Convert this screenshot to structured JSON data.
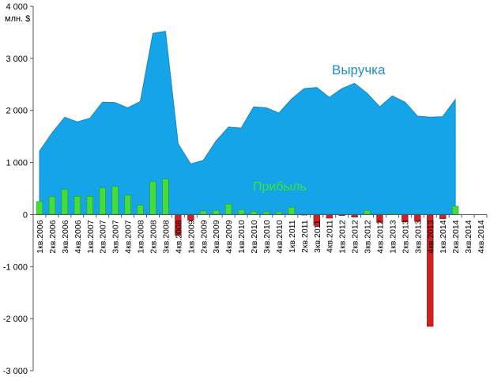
{
  "chart_data": {
    "type": "area",
    "unit_label": "млн. $",
    "series_labels": {
      "revenue": "Выручка",
      "profit": "Прибыль"
    },
    "ylim": [
      -3000,
      4000
    ],
    "yticks": [
      4000,
      3000,
      2000,
      1000,
      0,
      -1000,
      -2000,
      -3000
    ],
    "ytick_labels": [
      "4 000",
      "3 000",
      "2 000",
      "1 000",
      "0",
      "-1 000",
      "-2 000",
      "-3 000"
    ],
    "grid": false,
    "colors": {
      "revenue_fill": "#15a4e8",
      "revenue_stroke": "#1a86c2",
      "profit_positive": "#44dd3c",
      "profit_negative": "#d21f1f"
    },
    "categories": [
      "1кв.2006",
      "2кв.2006",
      "3кв.2006",
      "4кв.2006",
      "1кв.2007",
      "2кв.2007",
      "3кв.2007",
      "4кв.2007",
      "1кв.2008",
      "2кв.2008",
      "3кв.2008",
      "4кв.2008",
      "1кв.2009",
      "2кв.2009",
      "3кв.2009",
      "4кв.2009",
      "1кв.2010",
      "2кв.2010",
      "3кв.2010",
      "4кв.2010",
      "1кв.2011",
      "2кв.2011",
      "3кв.2011",
      "4кв.2011",
      "1кв.2012",
      "2кв.2012",
      "3кв.2012",
      "4кв.2012",
      "1кв.2013",
      "2кв.2013",
      "3кв.2013",
      "4кв.2013",
      "1кв.2014",
      "2кв.2014",
      "3кв.2014",
      "4кв.2014"
    ],
    "series": [
      {
        "key": "revenue",
        "type": "area",
        "values": [
          1220,
          1570,
          1870,
          1780,
          1850,
          2160,
          2150,
          2050,
          2170,
          3480,
          3520,
          1360,
          970,
          1040,
          1410,
          1680,
          1660,
          2070,
          2050,
          1950,
          2220,
          2420,
          2440,
          2250,
          2420,
          2520,
          2330,
          2070,
          2280,
          2160,
          1890,
          1870,
          1880,
          2210,
          null,
          null
        ]
      },
      {
        "key": "profit",
        "type": "bar",
        "values": [
          250,
          340,
          480,
          350,
          350,
          510,
          540,
          370,
          180,
          630,
          680,
          -400,
          -110,
          70,
          80,
          200,
          90,
          60,
          50,
          50,
          140,
          -10,
          -210,
          -70,
          -20,
          -50,
          80,
          -150,
          20,
          -140,
          -130,
          -2150,
          -80,
          160,
          null,
          null
        ]
      }
    ]
  }
}
